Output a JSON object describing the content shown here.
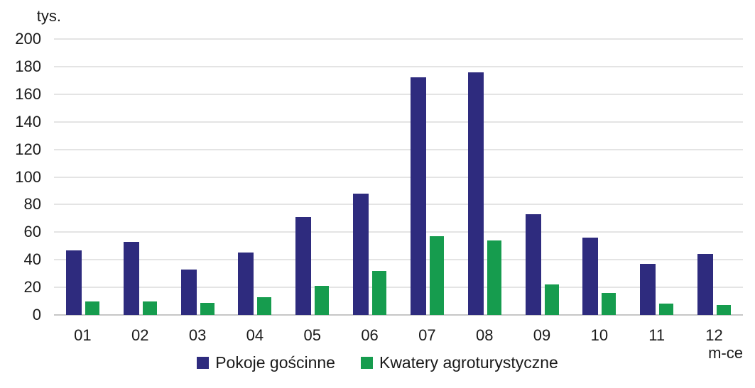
{
  "chart_data": {
    "type": "bar",
    "title": "",
    "unit_label": "tys.",
    "xlabel": "m-ce",
    "categories": [
      "01",
      "02",
      "03",
      "04",
      "05",
      "06",
      "07",
      "08",
      "09",
      "10",
      "11",
      "12"
    ],
    "series": [
      {
        "name": "Pokoje gościnne",
        "color": "#2e2b7e",
        "values": [
          47,
          53,
          33,
          45,
          71,
          88,
          172,
          176,
          73,
          56,
          37,
          44
        ]
      },
      {
        "name": "Kwatery agroturystyczne",
        "color": "#169c4e",
        "values": [
          10,
          10,
          9,
          13,
          21,
          32,
          57,
          54,
          22,
          16,
          8,
          7
        ]
      }
    ],
    "ylim": [
      0,
      200
    ],
    "ytick_step": 20,
    "grid": "horizontal-only",
    "legend_position": "bottom-center",
    "colors": {
      "gridline": "#e4e4e4",
      "zero_axis": "#c6c6c6",
      "text": "#1a1a1a",
      "background": "#ffffff"
    }
  }
}
